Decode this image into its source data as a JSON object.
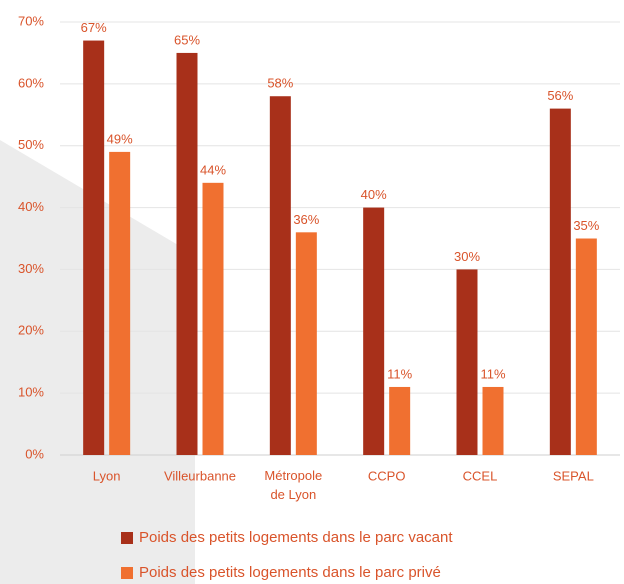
{
  "chart_data": {
    "type": "bar",
    "categories": [
      "Lyon",
      "Villeurbanne",
      "Métropole de Lyon",
      "CCPO",
      "CCEL",
      "SEPAL"
    ],
    "series": [
      {
        "name": "Poids des petits logements dans le parc vacant",
        "color": "#a8301a",
        "values": [
          67,
          65,
          58,
          40,
          30,
          56
        ],
        "value_labels": [
          "67%",
          "65%",
          "58%",
          "40%",
          "30%",
          "56%"
        ]
      },
      {
        "name": "Poids des petits logements dans le parc privé",
        "color": "#f07030",
        "values": [
          49,
          44,
          36,
          11,
          11,
          35
        ],
        "value_labels": [
          "49%",
          "44%",
          "36%",
          "11%",
          "11%",
          "35%"
        ]
      }
    ],
    "ylim": [
      0,
      70
    ],
    "yticks": [
      {
        "value": 0,
        "label": "0%"
      },
      {
        "value": 10,
        "label": "10%"
      },
      {
        "value": 20,
        "label": "20%"
      },
      {
        "value": 30,
        "label": "30%"
      },
      {
        "value": 40,
        "label": "40%"
      },
      {
        "value": 50,
        "label": "50%"
      },
      {
        "value": 60,
        "label": "60%"
      },
      {
        "value": 70,
        "label": "70%"
      }
    ],
    "grid": true
  }
}
